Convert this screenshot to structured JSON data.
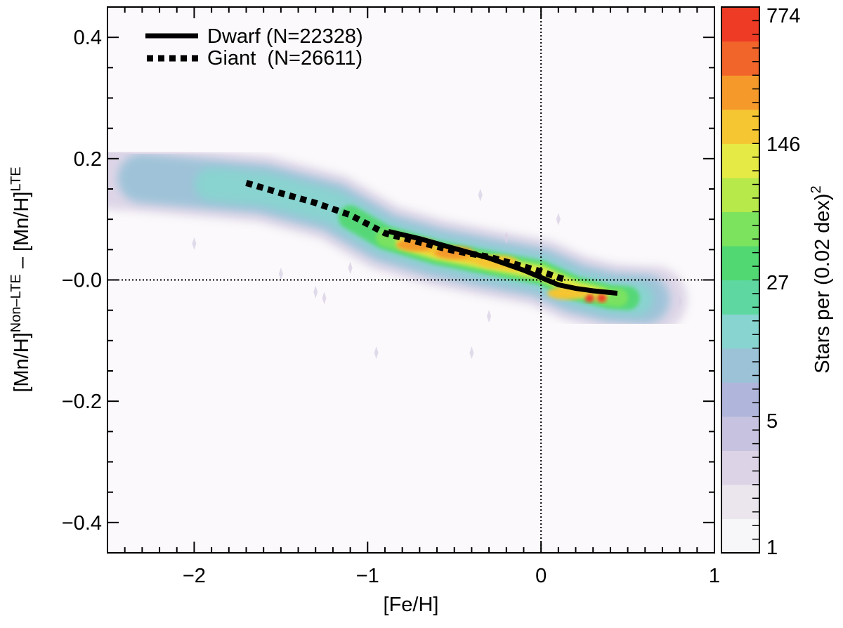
{
  "chart_data": {
    "type": "heatmap",
    "title": "",
    "xlabel": "[Fe/H]",
    "ylabel": {
      "base1": "[Mn/H]",
      "sup1": "Non–LTE",
      "minus": "–",
      "base2": "[Mn/H]",
      "sup2": "LTE"
    },
    "xlim": [
      -2.5,
      1.0
    ],
    "ylim": [
      -0.45,
      0.45
    ],
    "x_ticks": [
      -2,
      -1,
      0,
      1
    ],
    "x_tick_labels": [
      "−2",
      "−1",
      "0",
      "1"
    ],
    "y_ticks": [
      0.4,
      0.2,
      0.0,
      -0.2,
      -0.4
    ],
    "y_tick_labels": [
      "0.4",
      "0.2",
      "−0.0",
      "−0.2",
      "−0.4"
    ],
    "reference_lines": {
      "x": 0,
      "y": 0
    },
    "legend_position": "top-left",
    "series": [
      {
        "name": "Dwarf",
        "label_name": "Dwarf (N=22328)",
        "style": "solid",
        "x": [
          -0.88,
          -0.7,
          -0.5,
          -0.3,
          -0.1,
          0.0,
          0.1,
          0.2,
          0.3,
          0.44
        ],
        "y": [
          0.08,
          0.068,
          0.052,
          0.036,
          0.016,
          0.004,
          -0.008,
          -0.014,
          -0.018,
          -0.022
        ]
      },
      {
        "name": "Giant",
        "label_name": "Giant  (N=26611)",
        "style": "dotted",
        "x": [
          -1.7,
          -1.5,
          -1.3,
          -1.1,
          -0.9,
          -0.7,
          -0.5,
          -0.3,
          -0.1,
          0.0,
          0.1,
          0.15
        ],
        "y": [
          0.16,
          0.143,
          0.127,
          0.107,
          0.077,
          0.062,
          0.048,
          0.038,
          0.022,
          0.014,
          0.004,
          0.0
        ]
      }
    ],
    "density": {
      "ridge_x": [
        -2.4,
        -2.0,
        -1.6,
        -1.2,
        -0.9,
        -0.6,
        -0.3,
        0.0,
        0.2,
        0.4,
        0.6
      ],
      "ridge_y": [
        0.17,
        0.16,
        0.15,
        0.12,
        0.07,
        0.045,
        0.028,
        0.012,
        -0.014,
        -0.028,
        -0.032
      ],
      "peaks": [
        {
          "x": -0.72,
          "y": 0.058,
          "level": 260
        },
        {
          "x": -0.5,
          "y": 0.045,
          "level": 300
        },
        {
          "x": -0.25,
          "y": 0.03,
          "level": 180
        },
        {
          "x": 0.28,
          "y": -0.03,
          "level": 774
        },
        {
          "x": 0.35,
          "y": -0.03,
          "level": 700
        },
        {
          "x": 0.15,
          "y": -0.022,
          "level": 200
        }
      ]
    },
    "colorbar": {
      "label": "Stars per (0.02 dex)",
      "label_sup": "2",
      "ticks": [
        1,
        5,
        27,
        146,
        774
      ],
      "tick_labels": [
        "1",
        "5",
        "27",
        "146",
        "774"
      ],
      "scale": "log",
      "colors": [
        "#f7f7f9",
        "#ebe6ee",
        "#dcd4e6",
        "#c7c2df",
        "#b0b6db",
        "#9cc2d8",
        "#88d4d0",
        "#5ed8a0",
        "#52d873",
        "#7be35e",
        "#b8e94a",
        "#e6ea45",
        "#f5c532",
        "#f59a2a",
        "#f2652a",
        "#ee3b25"
      ]
    }
  }
}
